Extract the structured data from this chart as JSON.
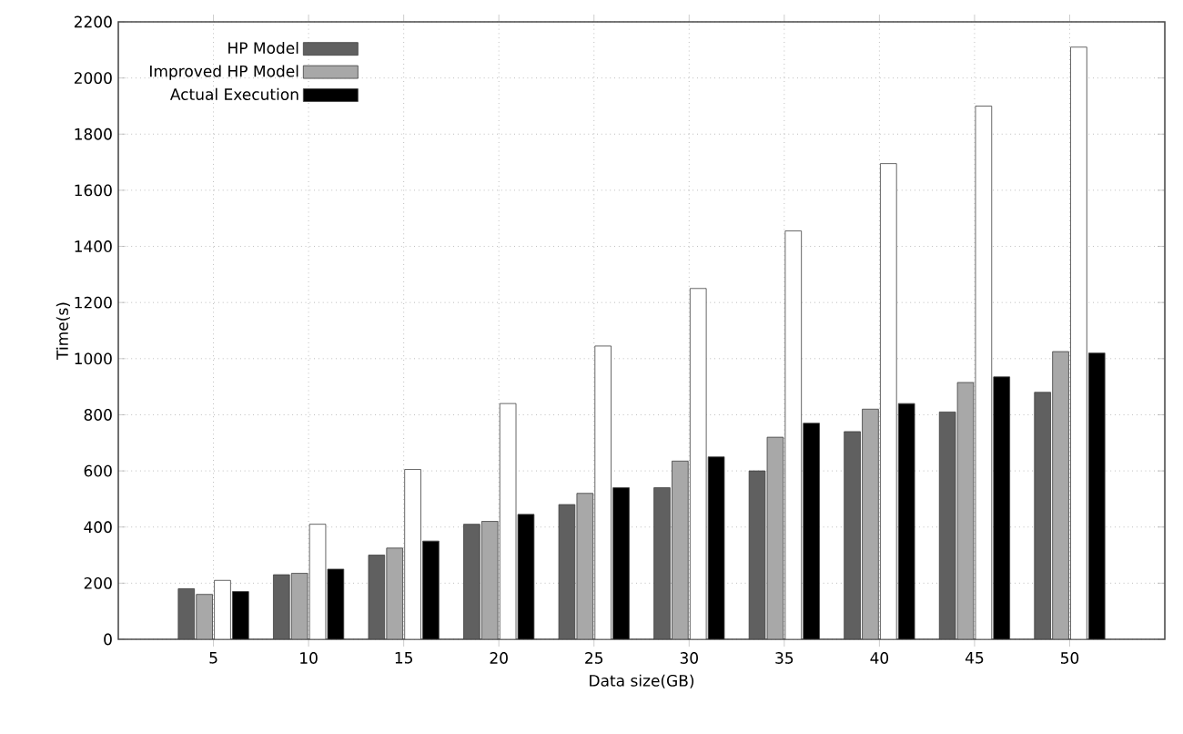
{
  "chart_data": {
    "type": "bar",
    "xlabel": "Data size(GB)",
    "ylabel": "Time(s)",
    "categories": [
      "5",
      "10",
      "15",
      "20",
      "25",
      "30",
      "35",
      "40",
      "45",
      "50"
    ],
    "series": [
      {
        "name": "HP Model",
        "color": "#606060",
        "values": [
          180,
          230,
          300,
          410,
          480,
          540,
          600,
          740,
          810,
          880
        ]
      },
      {
        "name": "Improved HP Model",
        "color": "#a8a8a8",
        "values": [
          160,
          235,
          325,
          420,
          520,
          635,
          720,
          820,
          915,
          1025
        ]
      },
      {
        "color": "#ffffff",
        "values": [
          210,
          410,
          605,
          840,
          1045,
          1250,
          1455,
          1695,
          1900,
          2110
        ]
      },
      {
        "name": "Actual Execution",
        "color": "#000000",
        "values": [
          170,
          250,
          350,
          445,
          540,
          650,
          770,
          840,
          935,
          1020
        ]
      }
    ],
    "ylim": [
      0,
      2200
    ],
    "yticks": [
      0,
      200,
      400,
      600,
      800,
      1000,
      1200,
      1400,
      1600,
      1800,
      2000,
      2200
    ],
    "grid": true,
    "legend": "top left"
  }
}
